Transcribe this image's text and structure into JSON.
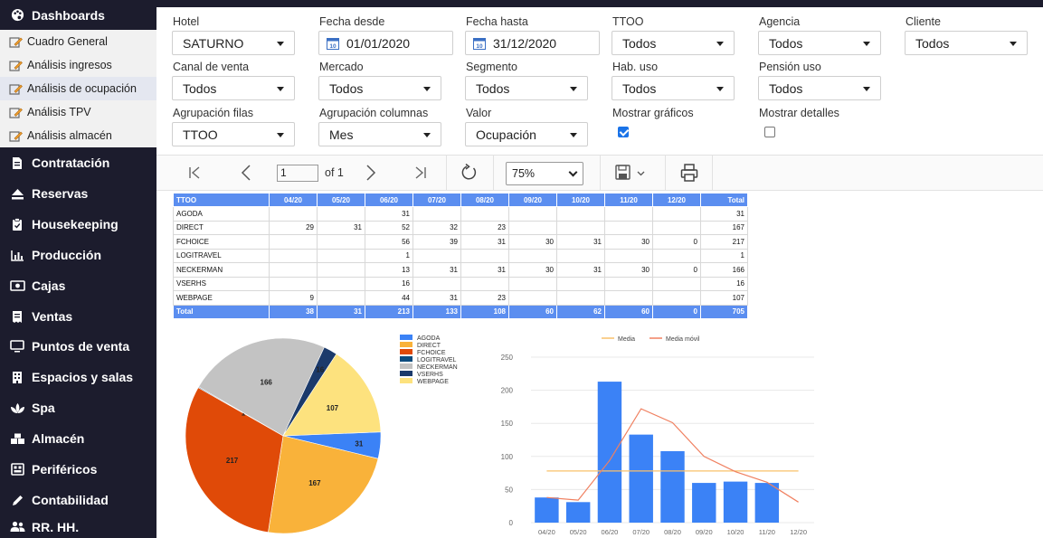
{
  "sidebar": {
    "dashboards": "Dashboards",
    "subitems": [
      {
        "label": "Cuadro General"
      },
      {
        "label": "Análisis ingresos"
      },
      {
        "label": "Análisis de ocupación"
      },
      {
        "label": "Análisis TPV"
      },
      {
        "label": "Análisis almacén"
      }
    ],
    "items": [
      {
        "label": "Contratación",
        "icon": "contract-icon"
      },
      {
        "label": "Reservas",
        "icon": "eject-icon"
      },
      {
        "label": "Housekeeping",
        "icon": "clipboard-icon"
      },
      {
        "label": "Producción",
        "icon": "bar-chart-icon"
      },
      {
        "label": "Cajas",
        "icon": "cash-icon"
      },
      {
        "label": "Ventas",
        "icon": "receipt-icon"
      },
      {
        "label": "Puntos de venta",
        "icon": "monitor-icon"
      },
      {
        "label": "Espacios y salas",
        "icon": "building-icon"
      },
      {
        "label": "Spa",
        "icon": "lotus-icon"
      },
      {
        "label": "Almacén",
        "icon": "boxes-icon"
      },
      {
        "label": "Periféricos",
        "icon": "peripherals-icon"
      },
      {
        "label": "Contabilidad",
        "icon": "pen-icon"
      },
      {
        "label": "RR. HH.",
        "icon": "users-icon"
      }
    ]
  },
  "filters": {
    "hotel": {
      "label": "Hotel",
      "value": "SATURNO"
    },
    "fecha_desde": {
      "label": "Fecha desde",
      "value": "01/01/2020"
    },
    "fecha_hasta": {
      "label": "Fecha hasta",
      "value": "31/12/2020"
    },
    "ttoo": {
      "label": "TTOO",
      "value": "Todos"
    },
    "agencia": {
      "label": "Agencia",
      "value": "Todos"
    },
    "cliente": {
      "label": "Cliente",
      "value": "Todos"
    },
    "canal": {
      "label": "Canal de venta",
      "value": "Todos"
    },
    "mercado": {
      "label": "Mercado",
      "value": "Todos"
    },
    "segmento": {
      "label": "Segmento",
      "value": "Todos"
    },
    "hab_uso": {
      "label": "Hab. uso",
      "value": "Todos"
    },
    "pension_uso": {
      "label": "Pensión uso",
      "value": "Todos"
    },
    "agrup_filas": {
      "label": "Agrupación filas",
      "value": "TTOO"
    },
    "agrup_columnas": {
      "label": "Agrupación columnas",
      "value": "Mes"
    },
    "valor": {
      "label": "Valor",
      "value": "Ocupación"
    },
    "mostrar_graficos": {
      "label": "Mostrar gráficos",
      "checked": true
    },
    "mostrar_detalles": {
      "label": "Mostrar detalles",
      "checked": false
    }
  },
  "toolbar": {
    "page": "1",
    "of_text": "of 1",
    "zoom": "75%"
  },
  "table": {
    "headers": [
      "TTOO",
      "04/20",
      "05/20",
      "06/20",
      "07/20",
      "08/20",
      "09/20",
      "10/20",
      "11/20",
      "12/20",
      "Total"
    ],
    "rows": [
      [
        "AGODA",
        "",
        "",
        "31",
        "",
        "",
        "",
        "",
        "",
        "",
        "31"
      ],
      [
        "DIRECT",
        "29",
        "31",
        "52",
        "32",
        "23",
        "",
        "",
        "",
        "",
        "167"
      ],
      [
        "FCHOICE",
        "",
        "",
        "56",
        "39",
        "31",
        "30",
        "31",
        "30",
        "0",
        "217"
      ],
      [
        "LOGITRAVEL",
        "",
        "",
        "1",
        "",
        "",
        "",
        "",
        "",
        "",
        "1"
      ],
      [
        "NECKERMAN",
        "",
        "",
        "13",
        "31",
        "31",
        "30",
        "31",
        "30",
        "0",
        "166"
      ],
      [
        "VSERHS",
        "",
        "",
        "16",
        "",
        "",
        "",
        "",
        "",
        "",
        "16"
      ],
      [
        "WEBPAGE",
        "9",
        "",
        "44",
        "31",
        "23",
        "",
        "",
        "",
        "",
        "107"
      ]
    ],
    "total": [
      "Total",
      "38",
      "31",
      "213",
      "133",
      "108",
      "60",
      "62",
      "60",
      "0",
      "705"
    ]
  },
  "chart_data": [
    {
      "type": "pie",
      "categories": [
        "AGODA",
        "DIRECT",
        "FCHOICE",
        "LOGITRAVEL",
        "NECKERMAN",
        "VSERHS",
        "WEBPAGE"
      ],
      "values": [
        31,
        167,
        217,
        1,
        166,
        16,
        107
      ],
      "colors": [
        "#3b82f6",
        "#f9b23a",
        "#e04a08",
        "#0d4c7e",
        "#c3c3c3",
        "#1b3a6b",
        "#fde27e"
      ],
      "legend": "right"
    },
    {
      "type": "bar",
      "categories": [
        "04/20",
        "05/20",
        "06/20",
        "07/20",
        "08/20",
        "09/20",
        "10/20",
        "11/20",
        "12/20"
      ],
      "series": [
        {
          "name": "",
          "values": [
            38,
            31,
            213,
            133,
            108,
            60,
            62,
            60,
            0
          ],
          "color": "#3b82f6"
        },
        {
          "name": "Media",
          "values": [
            78,
            78,
            78,
            78,
            78,
            78,
            78,
            78,
            78
          ],
          "color": "#f9c06a"
        },
        {
          "name": "Media móvil",
          "values": [
            38,
            34,
            94,
            172,
            151,
            100,
            77,
            61,
            31
          ],
          "color": "#f08060"
        }
      ],
      "yticks": [
        0,
        50,
        100,
        150,
        200,
        250
      ],
      "ylim": [
        0,
        250
      ],
      "legend": "top"
    }
  ]
}
